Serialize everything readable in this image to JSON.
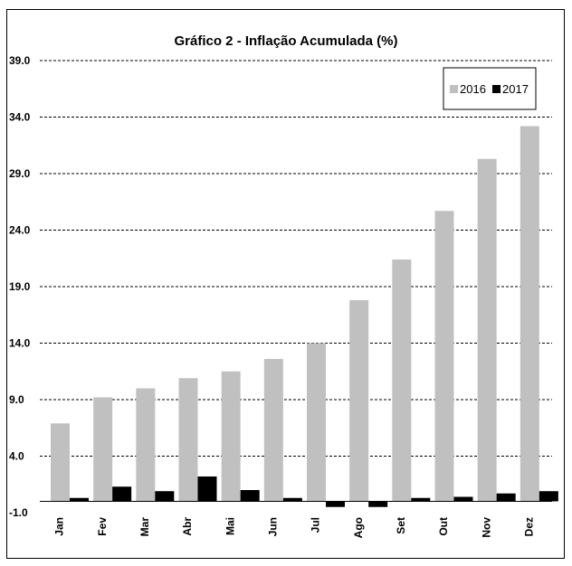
{
  "chart_data": {
    "type": "bar",
    "title": "Gráfico 2 - Inflação Acumulada (%)",
    "xlabel": "",
    "ylabel": "",
    "categories": [
      "Jan",
      "Fev",
      "Mar",
      "Abr",
      "Mai",
      "Jun",
      "Jul",
      "Ago",
      "Set",
      "Out",
      "Nov",
      "Dez"
    ],
    "series": [
      {
        "name": "2016",
        "color": "#c0c0c0",
        "values": [
          6.9,
          9.2,
          10.0,
          10.9,
          11.5,
          12.6,
          14.0,
          17.8,
          21.4,
          25.7,
          30.3,
          33.2
        ]
      },
      {
        "name": "2017",
        "color": "#000000",
        "values": [
          0.3,
          1.3,
          0.9,
          2.2,
          1.0,
          0.3,
          -0.5,
          -0.5,
          0.3,
          0.4,
          0.7,
          0.9
        ]
      }
    ],
    "yticks": [
      "-1.0",
      "4.0",
      "9.0",
      "14.0",
      "19.0",
      "24.0",
      "29.0",
      "34.0",
      "39.0"
    ],
    "ylim": [
      -1.0,
      39.0
    ],
    "grid": "horizontal dashed",
    "legend_position": "top-right"
  }
}
